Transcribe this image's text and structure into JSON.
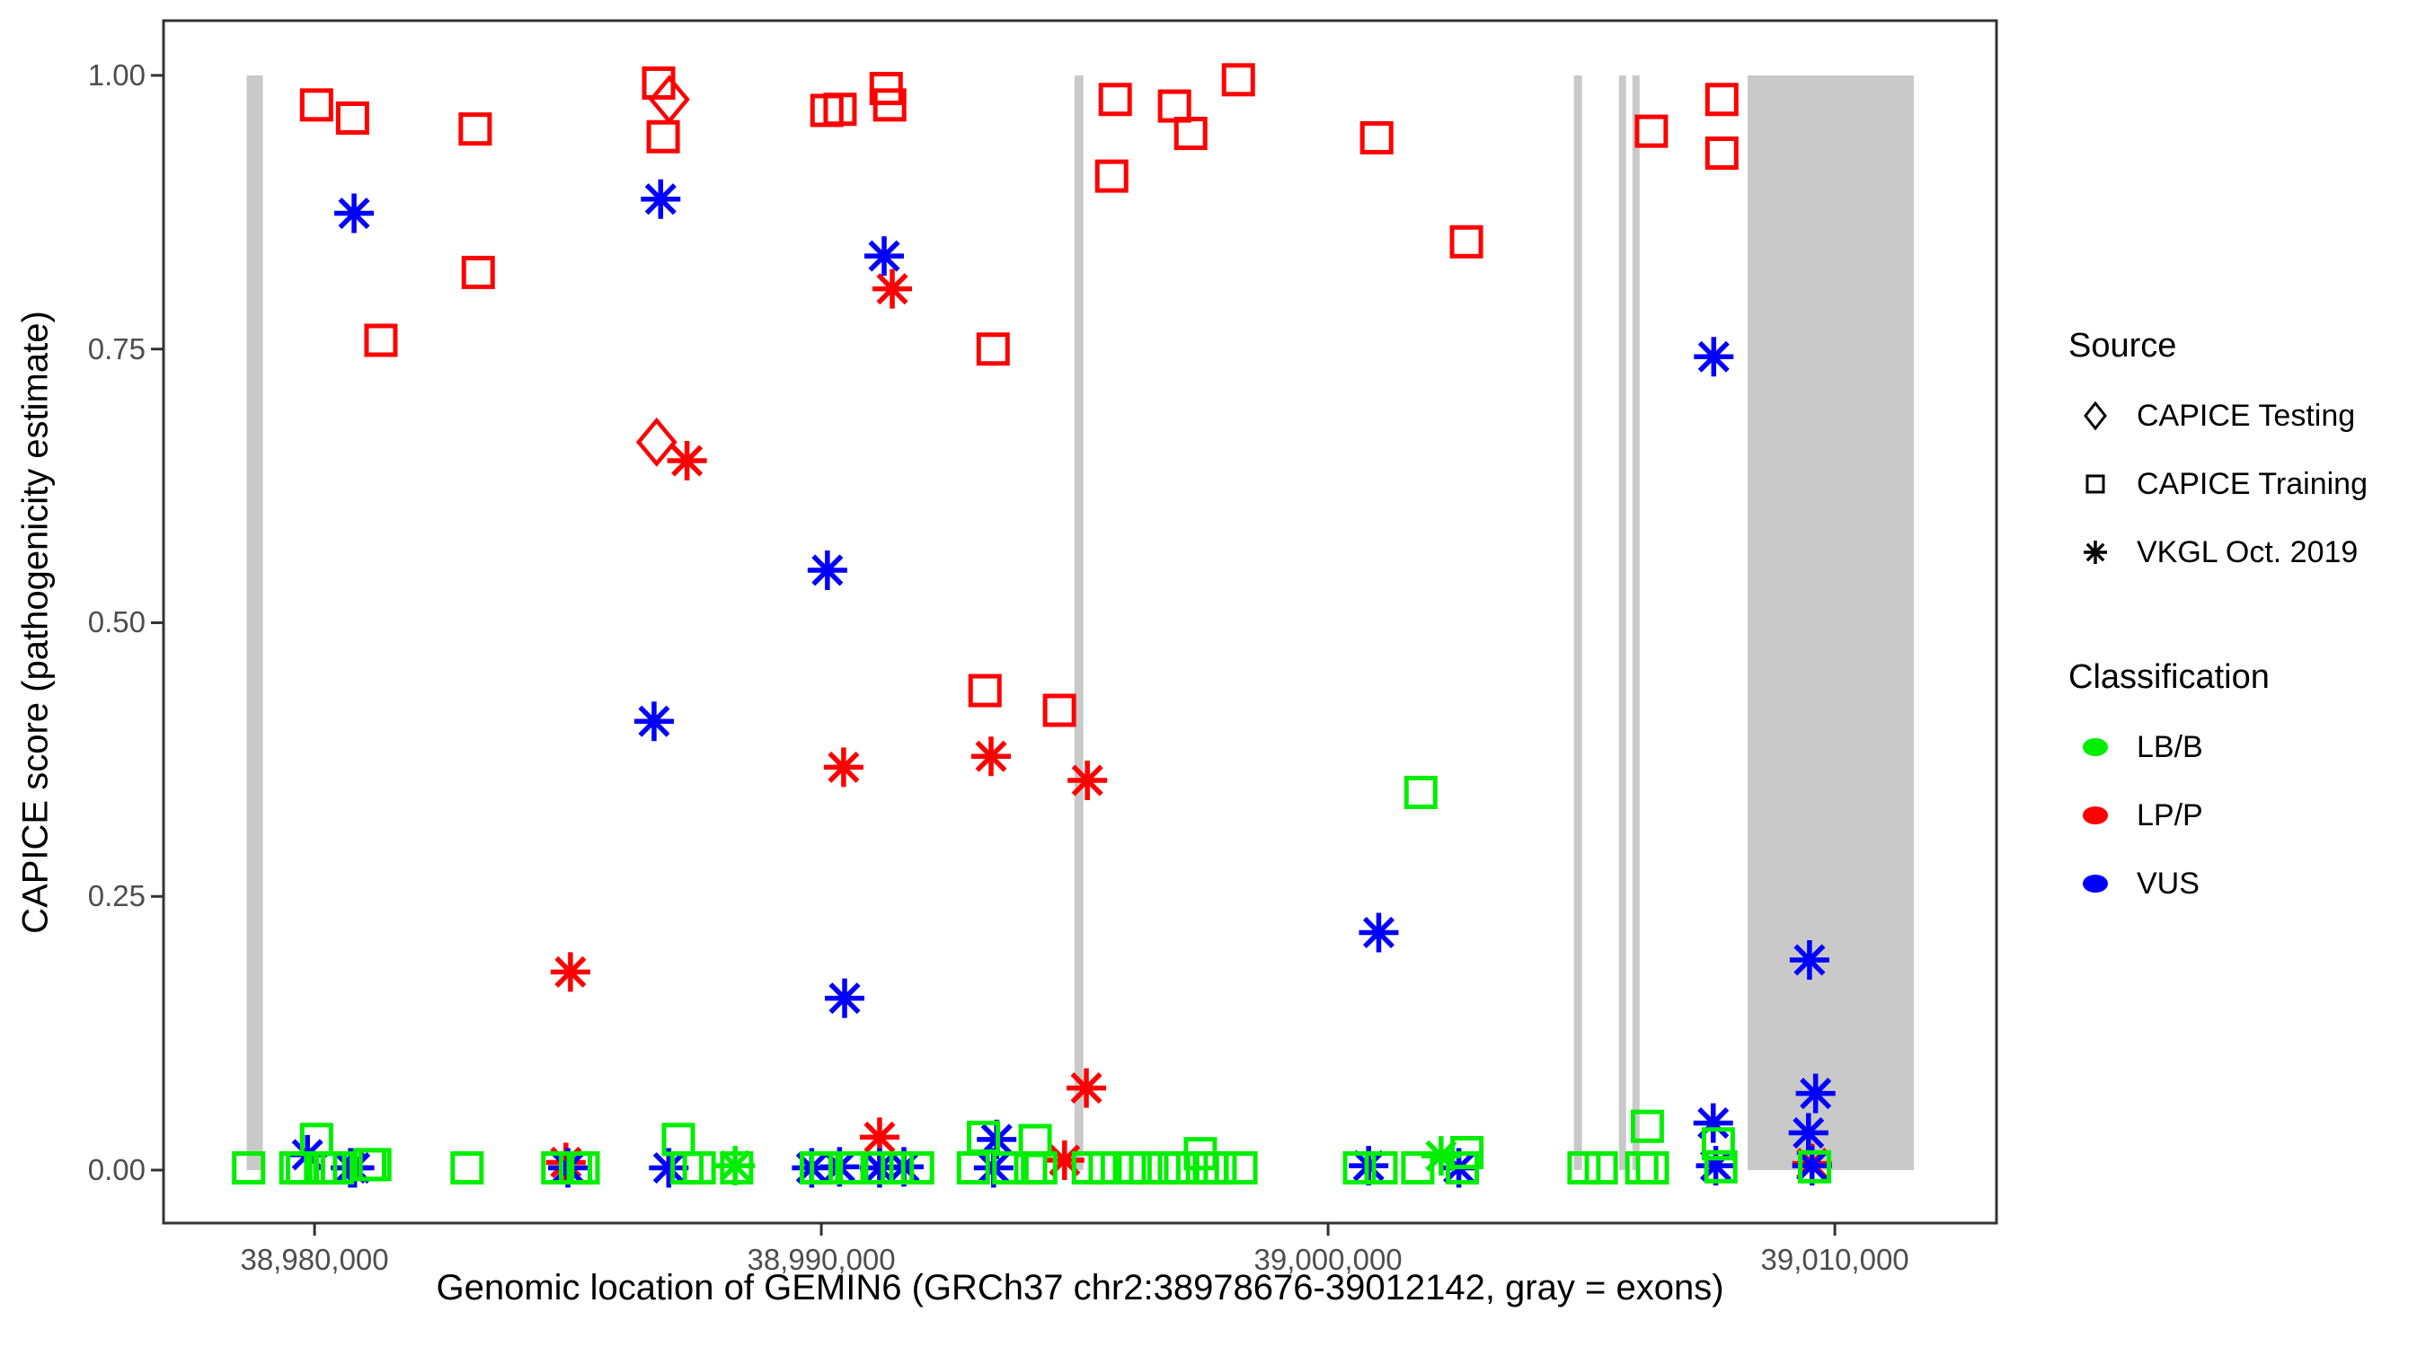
{
  "chart_data": {
    "type": "scatter",
    "title": "",
    "xlabel": "Genomic location of GEMIN6 (GRCh37 chr2:38978676-39012142, gray = exons)",
    "ylabel": "CAPICE score (pathogenicity estimate)",
    "xlim": [
      38977020,
      39013190
    ],
    "ylim": [
      -0.0484,
      1.05
    ],
    "grid": false,
    "x_ticks": [
      {
        "value": 38980000,
        "label": "38,980,000"
      },
      {
        "value": 38990000,
        "label": "38,990,000"
      },
      {
        "value": 39000000,
        "label": "39,000,000"
      },
      {
        "value": 39010000,
        "label": "39,010,000"
      }
    ],
    "y_ticks": [
      {
        "value": 0.0,
        "label": "0.00"
      },
      {
        "value": 0.25,
        "label": "0.25"
      },
      {
        "value": 0.5,
        "label": "0.50"
      },
      {
        "value": 0.75,
        "label": "0.75"
      },
      {
        "value": 1.0,
        "label": "1.00"
      }
    ],
    "colors": {
      "LB/B": "#00ee00",
      "LP/P": "#ff0000",
      "VUS": "#0000ff",
      "exon": "#c9c9c9",
      "axis_text": "#4d4d4d",
      "panel_border": "#333333"
    },
    "exons_bp": [
      [
        38978660,
        38978980
      ],
      [
        38994996,
        38995170
      ],
      [
        39004850,
        39005010
      ],
      [
        39005740,
        39005880
      ],
      [
        39006005,
        39006147
      ],
      [
        39008280,
        39011560
      ]
    ],
    "exon_y_range": [
      0.0,
      1.0
    ],
    "legend": {
      "source": {
        "title": "Source",
        "items": [
          {
            "shape": "diamond",
            "label": "CAPICE Testing"
          },
          {
            "shape": "square",
            "label": "CAPICE Training"
          },
          {
            "shape": "asterisk",
            "label": "VKGL Oct. 2019"
          }
        ]
      },
      "classification": {
        "title": "Classification",
        "items": [
          {
            "cls": "LB/B",
            "label": "LB/B"
          },
          {
            "cls": "LP/P",
            "label": "LP/P"
          },
          {
            "cls": "VUS",
            "label": "VUS"
          }
        ]
      }
    },
    "points": [
      [
        38980040,
        0.973,
        "training",
        "LP/P"
      ],
      [
        38980750,
        0.961,
        "training",
        "LP/P"
      ],
      [
        38981310,
        0.758,
        "training",
        "LP/P"
      ],
      [
        38983170,
        0.951,
        "training",
        "LP/P"
      ],
      [
        38983230,
        0.82,
        "training",
        "LP/P"
      ],
      [
        38986790,
        0.993,
        "training",
        "LP/P"
      ],
      [
        38986880,
        0.944,
        "training",
        "LP/P"
      ],
      [
        38990110,
        0.968,
        "training",
        "LP/P"
      ],
      [
        38990370,
        0.969,
        "training",
        "LP/P"
      ],
      [
        38991280,
        0.988,
        "training",
        "LP/P"
      ],
      [
        38991350,
        0.973,
        "training",
        "LP/P"
      ],
      [
        38993390,
        0.75,
        "training",
        "LP/P"
      ],
      [
        38995730,
        0.908,
        "training",
        "LP/P"
      ],
      [
        38995800,
        0.978,
        "training",
        "LP/P"
      ],
      [
        38996970,
        0.972,
        "training",
        "LP/P"
      ],
      [
        38997290,
        0.947,
        "training",
        "LP/P"
      ],
      [
        38998230,
        0.996,
        "training",
        "LP/P"
      ],
      [
        39000960,
        0.943,
        "training",
        "LP/P"
      ],
      [
        39002730,
        0.848,
        "training",
        "LP/P"
      ],
      [
        39006380,
        0.949,
        "training",
        "LP/P"
      ],
      [
        39007770,
        0.978,
        "training",
        "LP/P"
      ],
      [
        39007770,
        0.929,
        "training",
        "LP/P"
      ],
      [
        38993230,
        0.438,
        "training",
        "LP/P"
      ],
      [
        38994700,
        0.42,
        "training",
        "LP/P"
      ],
      [
        38987000,
        0.978,
        "testing",
        "LP/P"
      ],
      [
        38986750,
        0.665,
        "testing",
        "LP/P"
      ],
      [
        38987350,
        0.648,
        "vkgl",
        "LP/P"
      ],
      [
        38991400,
        0.805,
        "vkgl",
        "LP/P"
      ],
      [
        38990440,
        0.368,
        "vkgl",
        "LP/P"
      ],
      [
        38993350,
        0.378,
        "vkgl",
        "LP/P"
      ],
      [
        38995250,
        0.356,
        "vkgl",
        "LP/P"
      ],
      [
        38985050,
        0.181,
        "vkgl",
        "LP/P"
      ],
      [
        38995230,
        0.075,
        "vkgl",
        "LP/P"
      ],
      [
        38991150,
        0.03,
        "vkgl",
        "LP/P"
      ],
      [
        38984960,
        0.007,
        "vkgl",
        "LP/P"
      ],
      [
        38994800,
        0.009,
        "vkgl",
        "LP/P"
      ],
      [
        39009550,
        0.006,
        "vkgl",
        "LP/P"
      ],
      [
        38980780,
        0.874,
        "vkgl",
        "VUS"
      ],
      [
        38986830,
        0.887,
        "vkgl",
        "VUS"
      ],
      [
        38991240,
        0.835,
        "vkgl",
        "VUS"
      ],
      [
        38990120,
        0.548,
        "vkgl",
        "VUS"
      ],
      [
        38986700,
        0.41,
        "vkgl",
        "VUS"
      ],
      [
        39007610,
        0.743,
        "vkgl",
        "VUS"
      ],
      [
        39001000,
        0.217,
        "vkgl",
        "VUS"
      ],
      [
        39009500,
        0.192,
        "vkgl",
        "VUS"
      ],
      [
        39009620,
        0.07,
        "vkgl",
        "VUS"
      ],
      [
        39009480,
        0.034,
        "vkgl",
        "VUS"
      ],
      [
        38990460,
        0.157,
        "vkgl",
        "VUS"
      ],
      [
        38993460,
        0.028,
        "vkgl",
        "VUS"
      ],
      [
        38979860,
        0.014,
        "vkgl",
        "VUS"
      ],
      [
        38980710,
        0.002,
        "vkgl",
        "VUS"
      ],
      [
        38980790,
        0.002,
        "vkgl",
        "VUS"
      ],
      [
        38985000,
        0.002,
        "vkgl",
        "VUS"
      ],
      [
        38986990,
        0.002,
        "vkgl",
        "VUS"
      ],
      [
        38989810,
        0.002,
        "vkgl",
        "VUS"
      ],
      [
        38990360,
        0.003,
        "vkgl",
        "VUS"
      ],
      [
        38991150,
        0.002,
        "vkgl",
        "VUS"
      ],
      [
        38991630,
        0.003,
        "vkgl",
        "VUS"
      ],
      [
        38993400,
        0.002,
        "vkgl",
        "VUS"
      ],
      [
        39000800,
        0.004,
        "vkgl",
        "VUS"
      ],
      [
        39002580,
        0.002,
        "vkgl",
        "VUS"
      ],
      [
        39007600,
        0.043,
        "vkgl",
        "VUS"
      ],
      [
        39007650,
        0.004,
        "vkgl",
        "VUS"
      ],
      [
        39009550,
        0.004,
        "vkgl",
        "VUS"
      ],
      [
        38978700,
        0.002,
        "training",
        "LB/B"
      ],
      [
        38979630,
        0.002,
        "training",
        "LB/B"
      ],
      [
        38979760,
        0.002,
        "training",
        "LB/B"
      ],
      [
        38980040,
        0.028,
        "training",
        "LB/B"
      ],
      [
        38980120,
        0.002,
        "training",
        "LB/B"
      ],
      [
        38980300,
        0.002,
        "training",
        "LB/B"
      ],
      [
        38980450,
        0.002,
        "training",
        "LB/B"
      ],
      [
        38981090,
        0.005,
        "training",
        "LB/B"
      ],
      [
        38981190,
        0.005,
        "training",
        "LB/B"
      ],
      [
        38983010,
        0.002,
        "training",
        "LB/B"
      ],
      [
        38984800,
        0.002,
        "training",
        "LB/B"
      ],
      [
        38985150,
        0.002,
        "training",
        "LB/B"
      ],
      [
        38985300,
        0.002,
        "training",
        "LB/B"
      ],
      [
        38987180,
        0.028,
        "training",
        "LB/B"
      ],
      [
        38987350,
        0.002,
        "training",
        "LB/B"
      ],
      [
        38987590,
        0.002,
        "training",
        "LB/B"
      ],
      [
        38988330,
        0.002,
        "training",
        "LB/B"
      ],
      [
        38989900,
        0.002,
        "training",
        "LB/B"
      ],
      [
        38990100,
        0.002,
        "training",
        "LB/B"
      ],
      [
        38990600,
        0.002,
        "training",
        "LB/B"
      ],
      [
        38991100,
        0.002,
        "training",
        "LB/B"
      ],
      [
        38991500,
        0.002,
        "training",
        "LB/B"
      ],
      [
        38991900,
        0.002,
        "training",
        "LB/B"
      ],
      [
        38993000,
        0.002,
        "training",
        "LB/B"
      ],
      [
        38993200,
        0.03,
        "training",
        "LB/B"
      ],
      [
        38993700,
        0.002,
        "training",
        "LB/B"
      ],
      [
        38994130,
        0.002,
        "training",
        "LB/B"
      ],
      [
        38994220,
        0.027,
        "training",
        "LB/B"
      ],
      [
        38994330,
        0.002,
        "training",
        "LB/B"
      ],
      [
        38995270,
        0.002,
        "training",
        "LB/B"
      ],
      [
        38995600,
        0.002,
        "training",
        "LB/B"
      ],
      [
        38996080,
        0.002,
        "training",
        "LB/B"
      ],
      [
        38996400,
        0.002,
        "training",
        "LB/B"
      ],
      [
        38996760,
        0.002,
        "training",
        "LB/B"
      ],
      [
        38997090,
        0.002,
        "training",
        "LB/B"
      ],
      [
        38997480,
        0.015,
        "training",
        "LB/B"
      ],
      [
        38997520,
        0.002,
        "training",
        "LB/B"
      ],
      [
        38997700,
        0.002,
        "training",
        "LB/B"
      ],
      [
        38997870,
        0.002,
        "training",
        "LB/B"
      ],
      [
        38998280,
        0.002,
        "training",
        "LB/B"
      ],
      [
        39000620,
        0.002,
        "training",
        "LB/B"
      ],
      [
        39001045,
        0.002,
        "training",
        "LB/B"
      ],
      [
        39001770,
        0.002,
        "training",
        "LB/B"
      ],
      [
        39001830,
        0.345,
        "training",
        "LB/B"
      ],
      [
        39002650,
        0.002,
        "training",
        "LB/B"
      ],
      [
        39002740,
        0.016,
        "training",
        "LB/B"
      ],
      [
        39005050,
        0.002,
        "training",
        "LB/B"
      ],
      [
        39005390,
        0.002,
        "training",
        "LB/B"
      ],
      [
        39006190,
        0.002,
        "training",
        "LB/B"
      ],
      [
        39006400,
        0.002,
        "training",
        "LB/B"
      ],
      [
        39006300,
        0.04,
        "training",
        "LB/B"
      ],
      [
        39007700,
        0.024,
        "training",
        "LB/B"
      ],
      [
        39007750,
        0.003,
        "training",
        "LB/B"
      ],
      [
        39009600,
        0.003,
        "training",
        "LB/B"
      ],
      [
        38988300,
        0.004,
        "vkgl",
        "LB/B"
      ],
      [
        39002230,
        0.013,
        "vkgl",
        "LB/B"
      ]
    ]
  }
}
